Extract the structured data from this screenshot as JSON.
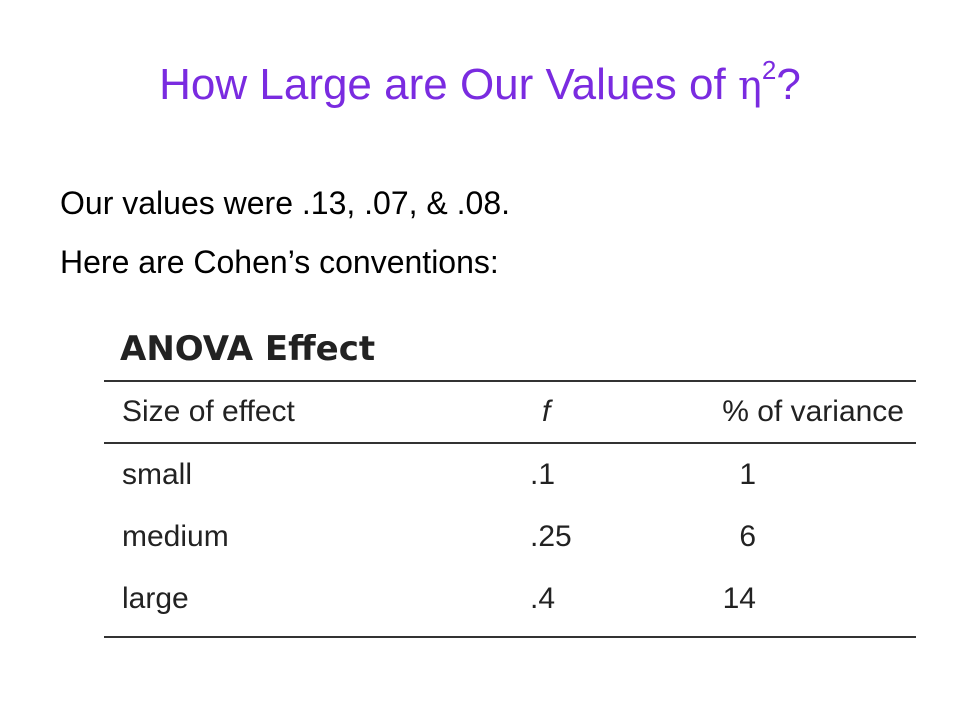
{
  "slide": {
    "title_prefix": "How Large are Our Values of ",
    "title_symbol": "η",
    "title_superscript": "2",
    "title_suffix": "?",
    "line1": "Our values were .13, .07, & .08.",
    "line2": "Here are Cohen’s conventions:"
  },
  "anova_table": {
    "title": "ANOVA Effect",
    "headers": [
      "Size of effect",
      "f",
      "% of variance"
    ],
    "rows": [
      [
        "small",
        ".1",
        "1"
      ],
      [
        "medium",
        ".25",
        "6"
      ],
      [
        "large",
        ".4",
        "14"
      ]
    ]
  },
  "colors": {
    "title": "#7a2be0",
    "body_text": "#000000",
    "table_text": "#222222"
  }
}
